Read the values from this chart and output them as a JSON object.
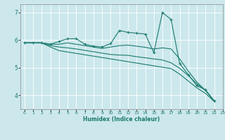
{
  "xlabel": "Humidex (Indice chaleur)",
  "bg_color": "#cce8ec",
  "line_color": "#1a7a6e",
  "grid_color": "#ffffff",
  "xlim": [
    -0.5,
    23
  ],
  "ylim": [
    3.5,
    7.3
  ],
  "yticks": [
    4,
    5,
    6,
    7
  ],
  "xticks": [
    0,
    1,
    2,
    3,
    4,
    5,
    6,
    7,
    8,
    9,
    10,
    11,
    12,
    13,
    14,
    15,
    16,
    17,
    18,
    19,
    20,
    21,
    22,
    23
  ],
  "series": [
    [
      5.9,
      5.9,
      5.9,
      5.85,
      5.95,
      6.05,
      6.05,
      5.85,
      5.78,
      5.75,
      5.88,
      6.35,
      6.28,
      6.25,
      6.22,
      5.55,
      7.0,
      6.75,
      5.15,
      4.75,
      4.35,
      4.2,
      3.8
    ],
    [
      5.9,
      5.9,
      5.9,
      5.85,
      5.85,
      5.9,
      5.85,
      5.8,
      5.75,
      5.7,
      5.75,
      5.8,
      5.82,
      5.78,
      5.74,
      5.68,
      5.72,
      5.68,
      5.32,
      4.88,
      4.48,
      4.18,
      3.8
    ],
    [
      5.9,
      5.9,
      5.9,
      5.8,
      5.75,
      5.72,
      5.68,
      5.63,
      5.58,
      5.53,
      5.48,
      5.46,
      5.45,
      5.4,
      5.36,
      5.32,
      5.28,
      5.18,
      4.98,
      4.72,
      4.42,
      4.18,
      3.8
    ],
    [
      5.9,
      5.9,
      5.9,
      5.75,
      5.62,
      5.57,
      5.52,
      5.47,
      5.42,
      5.37,
      5.32,
      5.27,
      5.22,
      5.17,
      5.12,
      5.07,
      5.02,
      4.97,
      4.77,
      4.52,
      4.27,
      4.07,
      3.78
    ]
  ]
}
